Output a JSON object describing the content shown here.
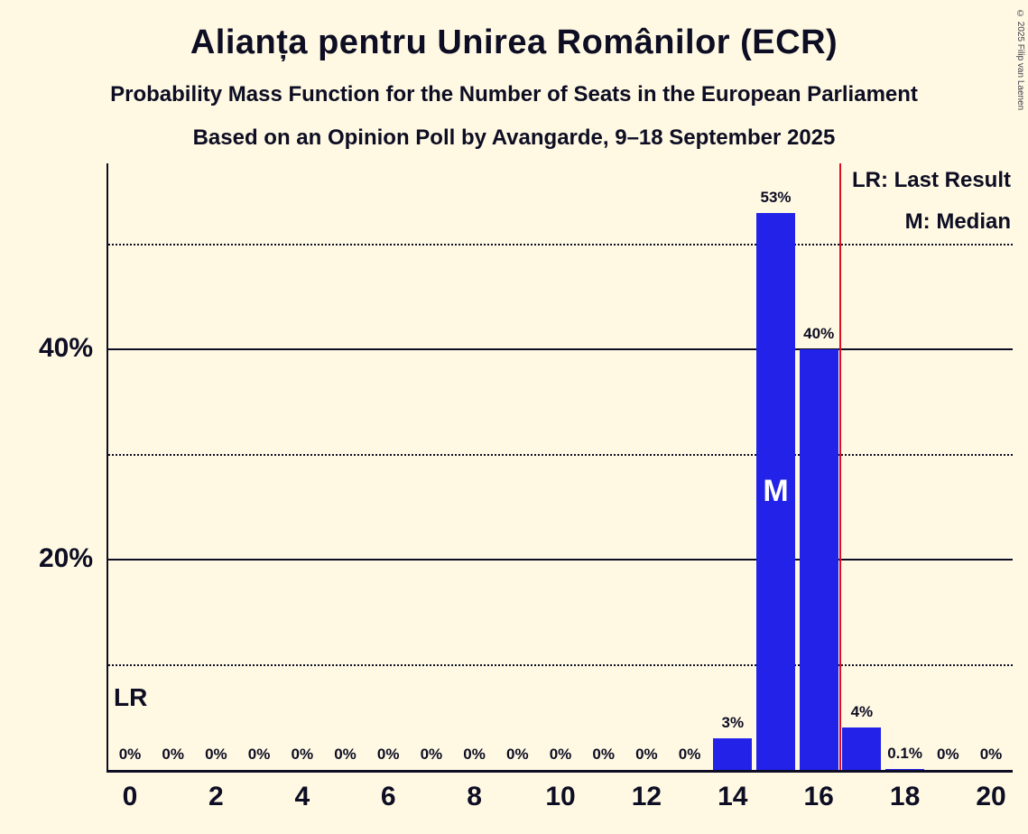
{
  "page": {
    "background": "#fff9e3",
    "copyright": "© 2025 Filip van Laenen"
  },
  "chart_data": {
    "type": "bar",
    "title": "Alianța pentru Unirea Românilor (ECR)",
    "subtitle1": "Probability Mass Function for the Number of Seats in the European Parliament",
    "subtitle2": "Based on an Opinion Poll by Avangarde, 9–18 September 2025",
    "xlabel": "",
    "ylabel": "",
    "categories": [
      0,
      1,
      2,
      3,
      4,
      5,
      6,
      7,
      8,
      9,
      10,
      11,
      12,
      13,
      14,
      15,
      16,
      17,
      18,
      19,
      20
    ],
    "values": [
      0,
      0,
      0,
      0,
      0,
      0,
      0,
      0,
      0,
      0,
      0,
      0,
      0,
      0,
      3,
      53,
      40,
      4,
      0.1,
      0,
      0
    ],
    "bar_labels": [
      "0%",
      "0%",
      "0%",
      "0%",
      "0%",
      "0%",
      "0%",
      "0%",
      "0%",
      "0%",
      "0%",
      "0%",
      "0%",
      "0%",
      "3%",
      "53%",
      "40%",
      "4%",
      "0.1%",
      "0%",
      "0%"
    ],
    "x_ticks": [
      0,
      2,
      4,
      6,
      8,
      10,
      12,
      14,
      16,
      18,
      20
    ],
    "y_ticks": [
      {
        "value": 20,
        "label": "20%"
      },
      {
        "value": 40,
        "label": "40%"
      }
    ],
    "gridlines": {
      "solid": [
        20,
        40
      ],
      "dotted": [
        10,
        30,
        50
      ]
    },
    "ylim": [
      0,
      57.7
    ],
    "grid": true,
    "legend_position": "top-right",
    "bar_color": "#2222e8",
    "text_color": "#0d0d23",
    "last_result_line": {
      "x": 16.5,
      "color": "#dc1020",
      "label": "LR"
    },
    "median": {
      "seat": 15,
      "label": "M"
    },
    "legend": {
      "lr": "LR: Last Result",
      "m": "M: Median"
    }
  }
}
